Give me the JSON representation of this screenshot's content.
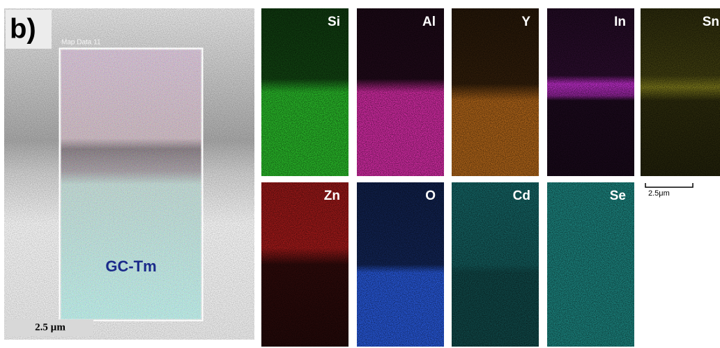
{
  "panel_label": "b)",
  "map_title": "Map Data 11",
  "overlay_label": "GC-Tm",
  "scale_bar": "2.5 µm",
  "maps": [
    {
      "label": "Si",
      "color": "#2fd42f"
    },
    {
      "label": "Al",
      "color": "#e22fb0"
    },
    {
      "label": "Y",
      "color": "#e0801f"
    },
    {
      "label": "In",
      "color": "#c42fd0"
    },
    {
      "label": "Sn",
      "color": "#c8c22a"
    },
    {
      "label": "Zn",
      "color": "#d22020"
    },
    {
      "label": "O",
      "color": "#2a5ee8"
    },
    {
      "label": "Cd",
      "color": "#24c0c0"
    },
    {
      "label": "Se",
      "color": "#2ad0c8"
    }
  ],
  "map_scale_bar": "2.5μm"
}
